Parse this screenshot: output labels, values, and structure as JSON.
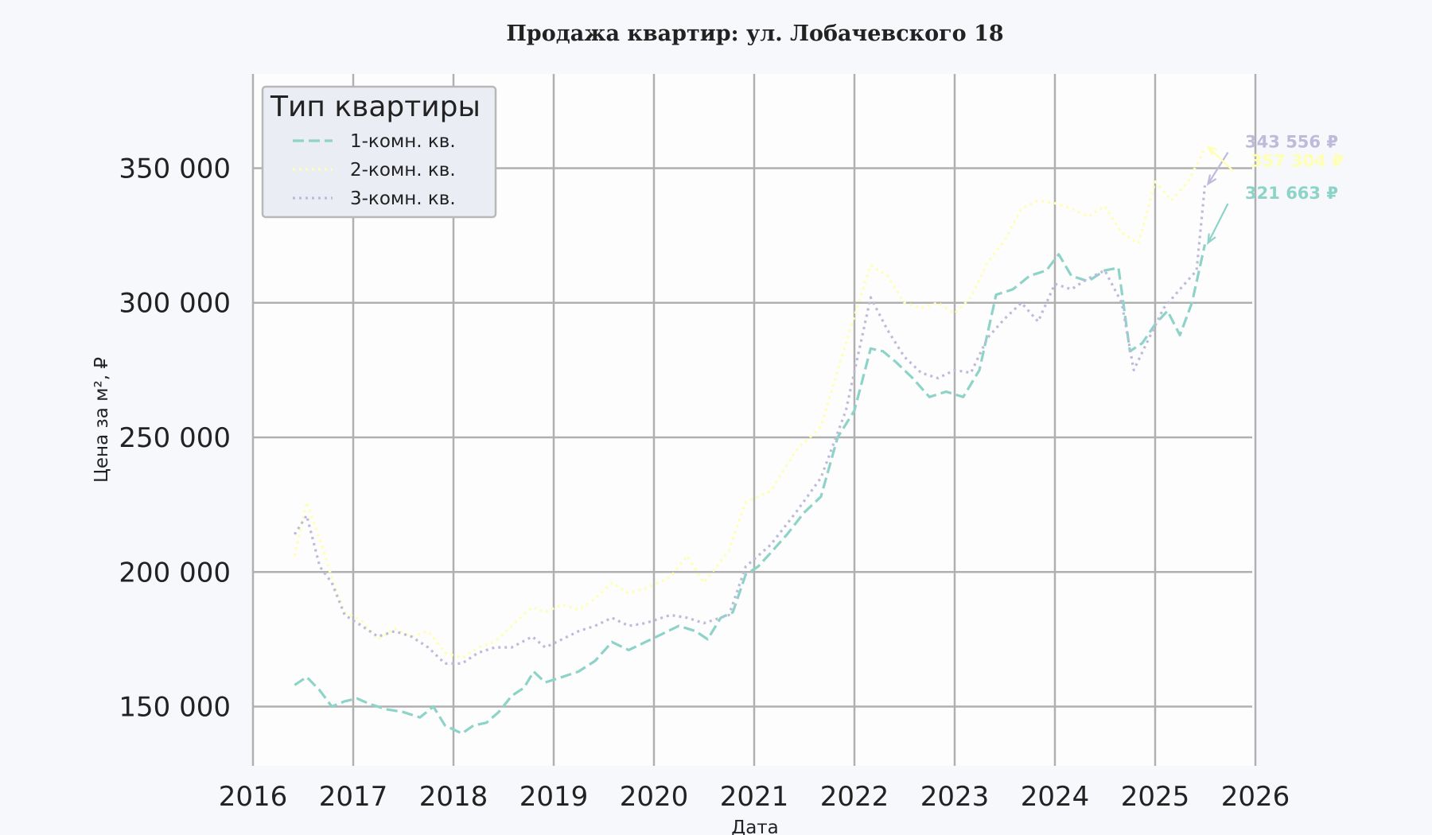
{
  "chart_data": {
    "type": "line",
    "title": "Продажа квартир: ул. Лобачевского 18",
    "xlabel": "Дата",
    "ylabel": "Цена за м², ₽",
    "xlim": [
      "2016-01-01",
      "2026-01-01"
    ],
    "ylim": [
      128000,
      385000
    ],
    "x_ticks": [
      "2016",
      "2017",
      "2018",
      "2019",
      "2020",
      "2021",
      "2022",
      "2023",
      "2024",
      "2025",
      "2026"
    ],
    "y_ticks": [
      150000,
      200000,
      250000,
      300000,
      350000
    ],
    "y_tick_labels": [
      "150 000",
      "200 000",
      "250 000",
      "300 000",
      "350 000"
    ],
    "grid": true,
    "legend": {
      "title": "Тип квартиры",
      "position": "top-left"
    },
    "series": [
      {
        "name": "1-комн. кв.",
        "color": "#8dd3c7",
        "dash": "dashed",
        "points": [
          [
            "2016-06-01",
            158000
          ],
          [
            "2016-07-15",
            161000
          ],
          [
            "2016-09-01",
            156000
          ],
          [
            "2016-10-15",
            150000
          ],
          [
            "2016-12-01",
            152000
          ],
          [
            "2017-01-15",
            153000
          ],
          [
            "2017-03-01",
            151000
          ],
          [
            "2017-05-01",
            149000
          ],
          [
            "2017-07-01",
            148000
          ],
          [
            "2017-09-01",
            146000
          ],
          [
            "2017-10-20",
            150000
          ],
          [
            "2017-12-01",
            143000
          ],
          [
            "2018-02-01",
            140000
          ],
          [
            "2018-03-15",
            143000
          ],
          [
            "2018-05-01",
            144000
          ],
          [
            "2018-06-15",
            148000
          ],
          [
            "2018-08-01",
            154000
          ],
          [
            "2018-09-15",
            157000
          ],
          [
            "2018-10-20",
            163000
          ],
          [
            "2018-12-01",
            159000
          ],
          [
            "2019-02-01",
            161000
          ],
          [
            "2019-04-01",
            163000
          ],
          [
            "2019-06-01",
            167000
          ],
          [
            "2019-08-01",
            174000
          ],
          [
            "2019-10-01",
            171000
          ],
          [
            "2019-12-01",
            174000
          ],
          [
            "2020-02-01",
            177000
          ],
          [
            "2020-04-01",
            180000
          ],
          [
            "2020-06-01",
            178000
          ],
          [
            "2020-07-15",
            175000
          ],
          [
            "2020-09-01",
            183000
          ],
          [
            "2020-10-15",
            185000
          ],
          [
            "2020-12-01",
            199000
          ],
          [
            "2021-01-15",
            202000
          ],
          [
            "2021-03-01",
            207000
          ],
          [
            "2021-05-01",
            214000
          ],
          [
            "2021-07-01",
            222000
          ],
          [
            "2021-09-01",
            228000
          ],
          [
            "2021-11-01",
            250000
          ],
          [
            "2022-01-01",
            260000
          ],
          [
            "2022-03-01",
            283000
          ],
          [
            "2022-04-15",
            282000
          ],
          [
            "2022-06-01",
            278000
          ],
          [
            "2022-08-01",
            272000
          ],
          [
            "2022-10-01",
            265000
          ],
          [
            "2022-12-01",
            267000
          ],
          [
            "2023-02-01",
            265000
          ],
          [
            "2023-04-01",
            275000
          ],
          [
            "2023-06-01",
            303000
          ],
          [
            "2023-08-01",
            305000
          ],
          [
            "2023-10-01",
            310000
          ],
          [
            "2023-12-01",
            312000
          ],
          [
            "2024-01-15",
            318000
          ],
          [
            "2024-03-01",
            310000
          ],
          [
            "2024-05-01",
            308000
          ],
          [
            "2024-07-01",
            312000
          ],
          [
            "2024-08-20",
            313000
          ],
          [
            "2024-10-01",
            282000
          ],
          [
            "2024-11-15",
            285000
          ],
          [
            "2025-01-01",
            292000
          ],
          [
            "2025-02-15",
            297000
          ],
          [
            "2025-04-01",
            288000
          ],
          [
            "2025-05-15",
            300000
          ],
          [
            "2025-07-01",
            321663
          ]
        ]
      },
      {
        "name": "2-комн. кв.",
        "color": "#ffffb3",
        "dash": "dotted",
        "points": [
          [
            "2016-06-01",
            206000
          ],
          [
            "2016-07-15",
            226000
          ],
          [
            "2016-09-01",
            212000
          ],
          [
            "2016-10-15",
            198000
          ],
          [
            "2016-12-01",
            185000
          ],
          [
            "2017-02-01",
            182000
          ],
          [
            "2017-04-01",
            175000
          ],
          [
            "2017-06-01",
            179000
          ],
          [
            "2017-08-01",
            176000
          ],
          [
            "2017-10-01",
            178000
          ],
          [
            "2017-12-01",
            170000
          ],
          [
            "2018-02-01",
            168000
          ],
          [
            "2018-04-01",
            172000
          ],
          [
            "2018-06-01",
            174000
          ],
          [
            "2018-08-01",
            180000
          ],
          [
            "2018-10-15",
            187000
          ],
          [
            "2018-12-01",
            185000
          ],
          [
            "2019-02-01",
            188000
          ],
          [
            "2019-04-01",
            186000
          ],
          [
            "2019-06-01",
            190000
          ],
          [
            "2019-08-01",
            196000
          ],
          [
            "2019-10-01",
            192000
          ],
          [
            "2019-12-01",
            194000
          ],
          [
            "2020-03-01",
            198000
          ],
          [
            "2020-05-01",
            206000
          ],
          [
            "2020-07-01",
            196000
          ],
          [
            "2020-10-01",
            208000
          ],
          [
            "2020-12-01",
            226000
          ],
          [
            "2021-03-01",
            230000
          ],
          [
            "2021-06-01",
            245000
          ],
          [
            "2021-09-01",
            254000
          ],
          [
            "2021-12-01",
            285000
          ],
          [
            "2022-03-01",
            314000
          ],
          [
            "2022-05-01",
            310000
          ],
          [
            "2022-07-01",
            300000
          ],
          [
            "2022-09-01",
            298000
          ],
          [
            "2022-11-01",
            300000
          ],
          [
            "2023-01-01",
            296000
          ],
          [
            "2023-03-01",
            302000
          ],
          [
            "2023-05-01",
            315000
          ],
          [
            "2023-07-01",
            323000
          ],
          [
            "2023-09-01",
            335000
          ],
          [
            "2023-11-01",
            338000
          ],
          [
            "2024-01-01",
            337000
          ],
          [
            "2024-03-01",
            335000
          ],
          [
            "2024-05-01",
            332000
          ],
          [
            "2024-07-01",
            336000
          ],
          [
            "2024-09-01",
            326000
          ],
          [
            "2024-11-01",
            322000
          ],
          [
            "2025-01-01",
            345000
          ],
          [
            "2025-03-01",
            338000
          ],
          [
            "2025-05-01",
            345000
          ],
          [
            "2025-07-01",
            357304
          ]
        ]
      },
      {
        "name": "3-комн. кв.",
        "color": "#bebada",
        "dash": "dotted",
        "points": [
          [
            "2016-06-01",
            214000
          ],
          [
            "2016-07-15",
            221000
          ],
          [
            "2016-09-01",
            202000
          ],
          [
            "2016-10-15",
            196000
          ],
          [
            "2016-12-01",
            184000
          ],
          [
            "2017-02-01",
            180000
          ],
          [
            "2017-04-01",
            176000
          ],
          [
            "2017-06-01",
            178000
          ],
          [
            "2017-08-01",
            176000
          ],
          [
            "2017-10-01",
            172000
          ],
          [
            "2017-12-01",
            166000
          ],
          [
            "2018-02-01",
            166000
          ],
          [
            "2018-04-01",
            170000
          ],
          [
            "2018-06-01",
            172000
          ],
          [
            "2018-08-01",
            172000
          ],
          [
            "2018-10-15",
            176000
          ],
          [
            "2018-12-01",
            172000
          ],
          [
            "2019-02-01",
            175000
          ],
          [
            "2019-04-01",
            178000
          ],
          [
            "2019-06-01",
            180000
          ],
          [
            "2019-08-01",
            183000
          ],
          [
            "2019-10-01",
            180000
          ],
          [
            "2019-12-01",
            181000
          ],
          [
            "2020-03-01",
            184000
          ],
          [
            "2020-05-01",
            183000
          ],
          [
            "2020-07-01",
            181000
          ],
          [
            "2020-10-01",
            184000
          ],
          [
            "2020-12-01",
            202000
          ],
          [
            "2021-03-01",
            210000
          ],
          [
            "2021-06-01",
            222000
          ],
          [
            "2021-09-01",
            235000
          ],
          [
            "2021-12-01",
            260000
          ],
          [
            "2022-03-01",
            302000
          ],
          [
            "2022-05-01",
            290000
          ],
          [
            "2022-07-01",
            280000
          ],
          [
            "2022-09-01",
            274000
          ],
          [
            "2022-11-01",
            272000
          ],
          [
            "2023-01-01",
            275000
          ],
          [
            "2023-03-01",
            274000
          ],
          [
            "2023-05-01",
            287000
          ],
          [
            "2023-07-01",
            294000
          ],
          [
            "2023-09-01",
            300000
          ],
          [
            "2023-11-01",
            293000
          ],
          [
            "2024-01-01",
            307000
          ],
          [
            "2024-03-01",
            305000
          ],
          [
            "2024-05-01",
            309000
          ],
          [
            "2024-07-01",
            312000
          ],
          [
            "2024-09-01",
            300000
          ],
          [
            "2024-10-15",
            275000
          ],
          [
            "2024-12-01",
            285000
          ],
          [
            "2025-02-01",
            298000
          ],
          [
            "2025-04-01",
            305000
          ],
          [
            "2025-06-01",
            312000
          ],
          [
            "2025-07-01",
            343556
          ]
        ]
      }
    ],
    "annotations": [
      {
        "series": "3-комн. кв.",
        "date": "2025-07-01",
        "value": 343556,
        "label": "343 556 ₽",
        "label_date": "2025-11-20",
        "label_value": 360000,
        "color": "#bebada"
      },
      {
        "series": "2-комн. кв.",
        "date": "2025-07-01",
        "value": 357304,
        "label": "357 304 ₽",
        "label_date": "2025-12-10",
        "label_value": 353000,
        "color": "#ffffb3"
      },
      {
        "series": "1-комн. кв.",
        "date": "2025-07-01",
        "value": 321663,
        "label": "321 663 ₽",
        "label_date": "2025-11-20",
        "label_value": 341000,
        "color": "#8dd3c7"
      }
    ]
  }
}
